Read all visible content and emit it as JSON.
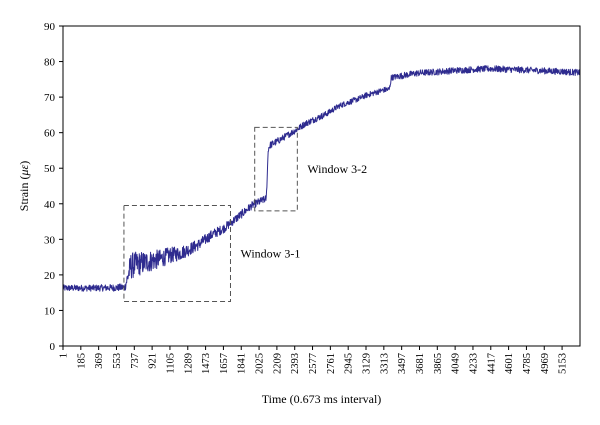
{
  "chart_data": {
    "type": "line",
    "xlabel": "Time (0.673 ms interval)",
    "ylabel_prefix": "Strain (",
    "ylabel_unit": "με",
    "ylabel_suffix": ")",
    "ylim": [
      0,
      90
    ],
    "yticks": [
      0,
      10,
      20,
      30,
      40,
      50,
      60,
      70,
      80,
      90
    ],
    "xlim": [
      1,
      5338
    ],
    "xticks": [
      1,
      185,
      369,
      553,
      737,
      921,
      1105,
      1289,
      1473,
      1657,
      1841,
      2025,
      2209,
      2393,
      2577,
      2761,
      2945,
      3129,
      3313,
      3497,
      3681,
      3865,
      4049,
      4233,
      4417,
      4601,
      4785,
      4969,
      5153
    ],
    "grid": false,
    "legend": "none",
    "series": [
      {
        "color": "#2e2b8f",
        "x": [
          1,
          300,
          553,
          640,
          700,
          760,
          850,
          921,
          1000,
          1105,
          1200,
          1289,
          1400,
          1473,
          1550,
          1657,
          1750,
          1841,
          1950,
          2025,
          2100,
          2120,
          2140,
          2209,
          2300,
          2393,
          2500,
          2577,
          2700,
          2761,
          2850,
          2945,
          3050,
          3129,
          3250,
          3313,
          3370,
          3390,
          3497,
          3600,
          3681,
          3800,
          3865,
          3950,
          4049,
          4150,
          4233,
          4330,
          4417,
          4500,
          4601,
          4700,
          4785,
          4880,
          4969,
          5050,
          5153,
          5250,
          5338
        ],
        "y": [
          16.3,
          16.3,
          16.4,
          16.5,
          22.5,
          23,
          23.5,
          24,
          24.5,
          25.5,
          26,
          27,
          28.5,
          30,
          31.5,
          33,
          35,
          37,
          39.5,
          40.5,
          41.5,
          55.5,
          56.5,
          57.5,
          59,
          60.5,
          62.5,
          63.5,
          65,
          66,
          67.5,
          68.5,
          69.5,
          70.5,
          71.5,
          72,
          72.2,
          75.5,
          76,
          76.5,
          76.8,
          77,
          77.1,
          77.3,
          77.5,
          77.6,
          77.8,
          77.9,
          78,
          77.9,
          77.8,
          77.7,
          77.6,
          77.5,
          77.4,
          77.3,
          77.2,
          77,
          76.9
        ],
        "noise": [
          0.9,
          0.9,
          1.0,
          1.1,
          3.8,
          3.5,
          3.2,
          3.0,
          2.6,
          2.3,
          2.0,
          1.8,
          1.6,
          1.5,
          1.4,
          1.3,
          1.2,
          1.2,
          1.1,
          1.1,
          1.0,
          1.0,
          1.0,
          1.0,
          0.9,
          0.9,
          0.9,
          0.9,
          0.9,
          0.8,
          0.8,
          0.8,
          0.8,
          0.8,
          0.8,
          0.8,
          0.8,
          0.8,
          0.9,
          0.9,
          0.9,
          0.9,
          0.9,
          0.9,
          0.9,
          0.9,
          0.9,
          0.9,
          0.9,
          0.9,
          0.9,
          0.9,
          0.9,
          0.9,
          0.9,
          0.9,
          0.9,
          0.9,
          0.9
        ]
      }
    ],
    "annotations": [
      {
        "label": "Window 3-1",
        "x0": 630,
        "x1": 1730,
        "y0": 12.5,
        "y1": 39.5
      },
      {
        "label": "Window 3-2",
        "x0": 1980,
        "x1": 2420,
        "y0": 38.0,
        "y1": 61.5
      }
    ]
  }
}
